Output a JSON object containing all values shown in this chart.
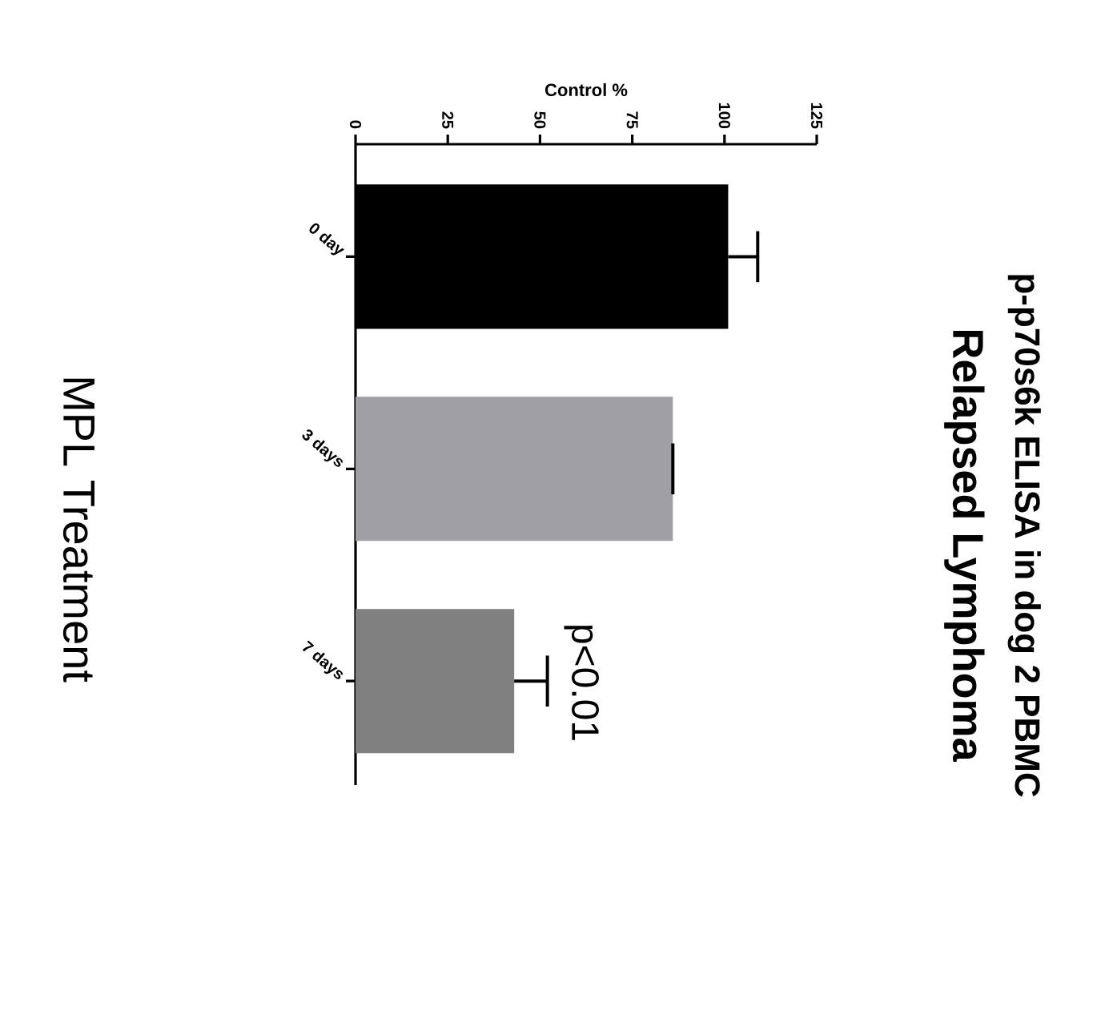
{
  "chart_data": {
    "type": "bar",
    "orientation": "horizontal",
    "title": "p-p70s6k ELISA in dog 2 PBMC",
    "subtitle": "Relapsed Lymphoma",
    "xlabel": "Control %",
    "ylabel": "MPL Treatment",
    "categories": [
      "0 day",
      "3 days",
      "7 days"
    ],
    "values": [
      101,
      86,
      43
    ],
    "colors": [
      "#000000",
      "#a09fa4",
      "#808080"
    ],
    "errors": [
      [
        101,
        109
      ],
      [
        86,
        86
      ],
      [
        43,
        52
      ]
    ],
    "xlim": [
      0,
      125
    ],
    "xticks": [
      0,
      25,
      50,
      75,
      100,
      125
    ],
    "annotations": [
      "p<0.01"
    ]
  }
}
